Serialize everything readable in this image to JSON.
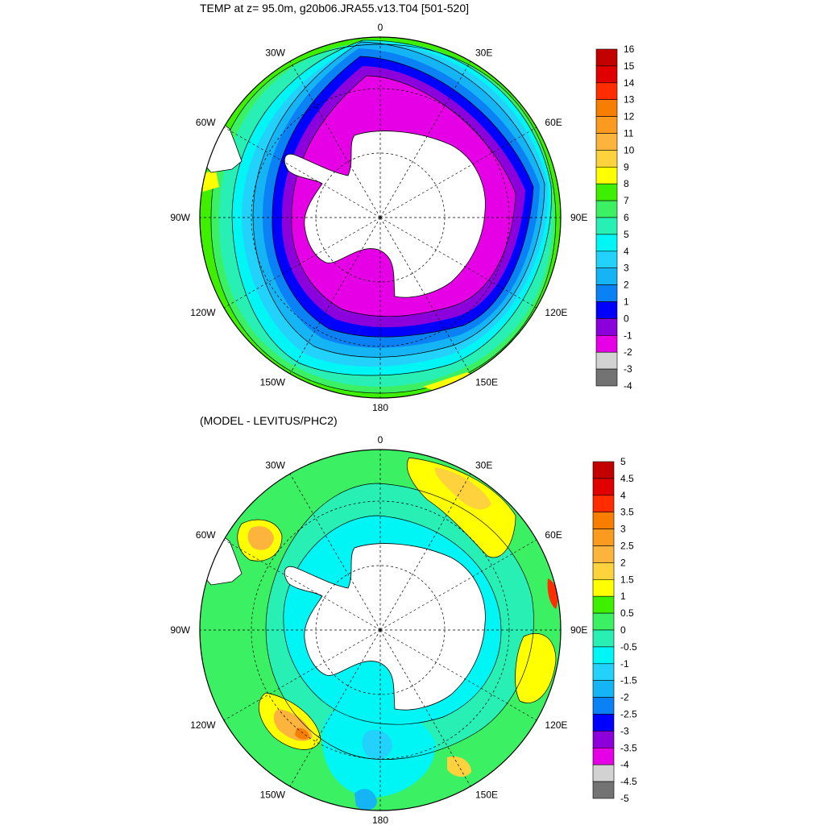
{
  "top_panel": {
    "title": "TEMP at z=  95.0m, g20b06.JRA55.v13.T04 [501-520]",
    "lon_labels": [
      {
        "text": "0",
        "lon": 0
      },
      {
        "text": "30E",
        "lon": 30
      },
      {
        "text": "60E",
        "lon": 60
      },
      {
        "text": "90E",
        "lon": 90
      },
      {
        "text": "120E",
        "lon": 120
      },
      {
        "text": "150E",
        "lon": 150
      },
      {
        "text": "180",
        "lon": 180
      },
      {
        "text": "150W",
        "lon": -150
      },
      {
        "text": "120W",
        "lon": -120
      },
      {
        "text": "90W",
        "lon": -90
      },
      {
        "text": "60W",
        "lon": -60
      },
      {
        "text": "30W",
        "lon": -30
      }
    ],
    "colorbar": {
      "labels": [
        "16",
        "15",
        "14",
        "13",
        "12",
        "11",
        "10",
        "9",
        "8",
        "7",
        "6",
        "5",
        "4",
        "3",
        "2",
        "1",
        "0",
        "-1",
        "-2",
        "-3",
        "-4"
      ],
      "colors": [
        "#c30000",
        "#e10000",
        "#ff2d00",
        "#f77e00",
        "#fa9a1e",
        "#fcb43c",
        "#fed23c",
        "#ffff00",
        "#3ef000",
        "#3cf064",
        "#28f0b4",
        "#00f5f5",
        "#22d2fa",
        "#14b4f5",
        "#0a82f5",
        "#0000ff",
        "#8c00dc",
        "#e600e6",
        "#d2d2d2",
        "#737373"
      ]
    }
  },
  "bottom_panel": {
    "title": "(MODEL - LEVITUS/PHC2)",
    "lon_labels": [
      {
        "text": "0",
        "lon": 0
      },
      {
        "text": "30E",
        "lon": 30
      },
      {
        "text": "60E",
        "lon": 60
      },
      {
        "text": "90E",
        "lon": 90
      },
      {
        "text": "120E",
        "lon": 120
      },
      {
        "text": "150E",
        "lon": 150
      },
      {
        "text": "180",
        "lon": 180
      },
      {
        "text": "150W",
        "lon": -150
      },
      {
        "text": "120W",
        "lon": -120
      },
      {
        "text": "90W",
        "lon": -90
      },
      {
        "text": "60W",
        "lon": -60
      },
      {
        "text": "30W",
        "lon": -30
      }
    ],
    "colorbar": {
      "labels": [
        "5",
        "4.5",
        "4",
        "3.5",
        "3",
        "2.5",
        "2",
        "1.5",
        "1",
        "0.5",
        "0",
        "-0.5",
        "-1",
        "-1.5",
        "-2",
        "-2.5",
        "-3",
        "-3.5",
        "-4",
        "-4.5",
        "-5"
      ],
      "colors": [
        "#c30000",
        "#e10000",
        "#ff2d00",
        "#f77e00",
        "#fa9a1e",
        "#fcb43c",
        "#fed23c",
        "#ffff00",
        "#3ef000",
        "#3cf064",
        "#28f0b4",
        "#00f5f5",
        "#22d2fa",
        "#14b4f5",
        "#0a82f5",
        "#0000ff",
        "#8c00dc",
        "#e600e6",
        "#d2d2d2",
        "#737373"
      ]
    }
  }
}
